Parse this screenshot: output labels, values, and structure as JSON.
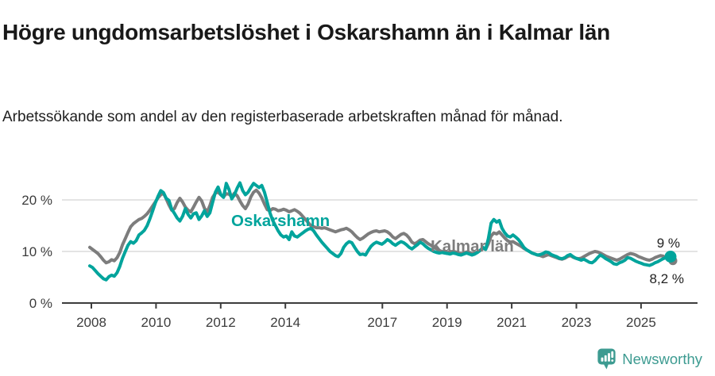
{
  "footer": {
    "brand": "Newsworthy",
    "brand_color": "#3d9b91",
    "logo_icon": "bar-chart-speech-bubble-icon"
  },
  "chart_data": {
    "type": "line",
    "title": "Högre ungdomsarbetslöshet i Oskarshamn än i Kalmar län",
    "subtitle": "Arbetssökande som andel av den registerbaserade arbetskraften månad för månad.",
    "x_unit": "month",
    "x_start": "2008-01",
    "x_end": "2025-10",
    "ylim": [
      0,
      24
    ],
    "grid": "horizontal-only",
    "legend_position": "inline-labels-on-lines",
    "yticks": [
      {
        "value": 0,
        "label": "0 %"
      },
      {
        "value": 10,
        "label": "10 %"
      },
      {
        "value": 20,
        "label": "20 %"
      }
    ],
    "xticks": [
      {
        "year": 2008,
        "label": "2008"
      },
      {
        "year": 2010,
        "label": "2010"
      },
      {
        "year": 2012,
        "label": "2012"
      },
      {
        "year": 2014,
        "label": "2014"
      },
      {
        "year": 2017,
        "label": "2017"
      },
      {
        "year": 2019,
        "label": "2019"
      },
      {
        "year": 2021,
        "label": "2021"
      },
      {
        "year": 2023,
        "label": "2023"
      },
      {
        "year": 2025,
        "label": "2025"
      }
    ],
    "series": [
      {
        "name": "Oskarshamn",
        "color": "#00a49c",
        "end_value": 9.0,
        "end_label": "9 %",
        "values": [
          7.2,
          6.9,
          6.3,
          5.7,
          5.2,
          4.7,
          4.5,
          5.1,
          5.4,
          5.2,
          5.9,
          7.1,
          8.7,
          10.0,
          11.2,
          11.9,
          11.6,
          12.1,
          13.2,
          13.6,
          14.1,
          15.0,
          16.3,
          17.8,
          19.4,
          20.7,
          21.8,
          21.4,
          20.3,
          19.9,
          18.2,
          17.4,
          16.5,
          15.9,
          16.8,
          18.3,
          17.2,
          16.5,
          17.3,
          17.5,
          16.2,
          16.9,
          17.9,
          16.8,
          17.5,
          19.5,
          21.5,
          22.5,
          21.0,
          20.5,
          23.2,
          22.0,
          20.2,
          21.0,
          22.3,
          23.3,
          21.8,
          21.0,
          21.5,
          22.4,
          23.2,
          22.8,
          22.4,
          22.8,
          21.5,
          19.5,
          17.5,
          16.0,
          15.0,
          14.0,
          13.2,
          12.8,
          13.0,
          12.3,
          13.8,
          13.0,
          12.8,
          13.2,
          13.6,
          14.0,
          14.3,
          14.5,
          14.0,
          13.2,
          12.5,
          11.8,
          11.2,
          10.6,
          10.0,
          9.6,
          9.2,
          9.0,
          9.6,
          10.8,
          11.5,
          11.9,
          11.7,
          10.8,
          10.0,
          9.4,
          9.5,
          9.3,
          10.2,
          11.0,
          11.5,
          11.8,
          11.6,
          11.4,
          11.8,
          12.3,
          12.0,
          11.5,
          11.2,
          11.6,
          11.9,
          11.7,
          11.3,
          10.8,
          10.5,
          10.9,
          11.3,
          11.8,
          11.5,
          11.0,
          10.6,
          10.3,
          10.0,
          9.8,
          9.7,
          9.8,
          9.7,
          9.6,
          9.5,
          9.7,
          9.6,
          9.4,
          9.3,
          9.5,
          9.7,
          9.5,
          9.3,
          9.5,
          9.8,
          10.2,
          10.8,
          10.4,
          12.5,
          15.5,
          16.2,
          15.7,
          16.0,
          14.5,
          13.6,
          13.0,
          12.8,
          13.2,
          12.8,
          12.3,
          11.6,
          10.8,
          10.3,
          10.0,
          9.7,
          9.5,
          9.3,
          9.4,
          9.6,
          9.9,
          9.8,
          9.4,
          9.2,
          9.0,
          8.7,
          8.6,
          8.8,
          9.2,
          9.4,
          9.0,
          8.7,
          8.5,
          8.3,
          8.5,
          8.2,
          7.9,
          7.8,
          8.2,
          8.8,
          9.3,
          9.0,
          8.6,
          8.3,
          8.0,
          7.6,
          7.5,
          7.8,
          8.0,
          8.3,
          8.8,
          8.7,
          8.4,
          8.1,
          7.9,
          7.7,
          7.5,
          7.4,
          7.3,
          7.5,
          7.8,
          8.0,
          8.3,
          8.6,
          8.8,
          8.9,
          9.0
        ]
      },
      {
        "name": "Kalmar län",
        "color": "#7d7d7d",
        "end_value": 8.2,
        "end_label": "8,2 %",
        "values": [
          10.8,
          10.4,
          10.0,
          9.6,
          9.0,
          8.3,
          7.8,
          8.0,
          8.4,
          8.2,
          8.8,
          9.8,
          11.3,
          12.5,
          13.7,
          14.8,
          15.4,
          15.8,
          16.2,
          16.4,
          16.8,
          17.3,
          18.0,
          18.8,
          19.6,
          20.4,
          21.0,
          21.3,
          20.2,
          19.0,
          18.0,
          18.3,
          19.5,
          20.3,
          19.6,
          18.6,
          18.0,
          17.7,
          18.6,
          19.6,
          20.5,
          19.8,
          18.4,
          17.7,
          18.9,
          20.5,
          21.3,
          21.5,
          21.0,
          20.6,
          21.2,
          21.1,
          20.6,
          21.3,
          20.8,
          19.8,
          18.9,
          18.3,
          19.2,
          20.6,
          21.5,
          21.9,
          21.3,
          20.4,
          19.2,
          18.1,
          17.9,
          18.3,
          18.2,
          17.9,
          18.0,
          18.2,
          18.0,
          17.7,
          17.9,
          18.1,
          17.8,
          17.4,
          16.8,
          16.2,
          15.6,
          15.0,
          14.8,
          14.6,
          14.6,
          14.5,
          14.6,
          14.4,
          14.2,
          14.0,
          13.8,
          14.0,
          14.2,
          14.3,
          14.5,
          14.2,
          13.8,
          13.2,
          12.7,
          12.3,
          12.6,
          13.0,
          13.4,
          13.7,
          13.9,
          14.0,
          13.8,
          13.9,
          14.0,
          13.8,
          13.4,
          12.8,
          12.5,
          12.9,
          13.3,
          13.5,
          13.2,
          12.6,
          11.8,
          11.5,
          11.8,
          12.2,
          12.3,
          11.9,
          11.5,
          11.2,
          10.8,
          10.5,
          10.2,
          10.0,
          9.9,
          9.8,
          9.9,
          10.0,
          9.9,
          9.7,
          9.6,
          9.7,
          9.9,
          9.8,
          9.6,
          9.7,
          9.9,
          10.2,
          10.6,
          10.4,
          11.5,
          13.0,
          13.6,
          13.4,
          13.8,
          13.2,
          12.6,
          12.1,
          11.8,
          11.9,
          11.6,
          11.3,
          11.0,
          10.6,
          10.3,
          10.0,
          9.7,
          9.5,
          9.3,
          9.2,
          9.0,
          9.2,
          9.4,
          9.2,
          9.0,
          8.8,
          8.6,
          8.5,
          8.7,
          9.0,
          9.2,
          8.9,
          8.7,
          8.6,
          8.7,
          9.0,
          9.3,
          9.6,
          9.8,
          10.0,
          9.9,
          9.7,
          9.4,
          9.1,
          8.9,
          8.7,
          8.5,
          8.3,
          8.5,
          8.8,
          9.1,
          9.4,
          9.6,
          9.5,
          9.3,
          9.0,
          8.8,
          8.6,
          8.4,
          8.3,
          8.5,
          8.8,
          9.0,
          9.2,
          9.1,
          8.8,
          8.5,
          8.2
        ]
      }
    ]
  }
}
